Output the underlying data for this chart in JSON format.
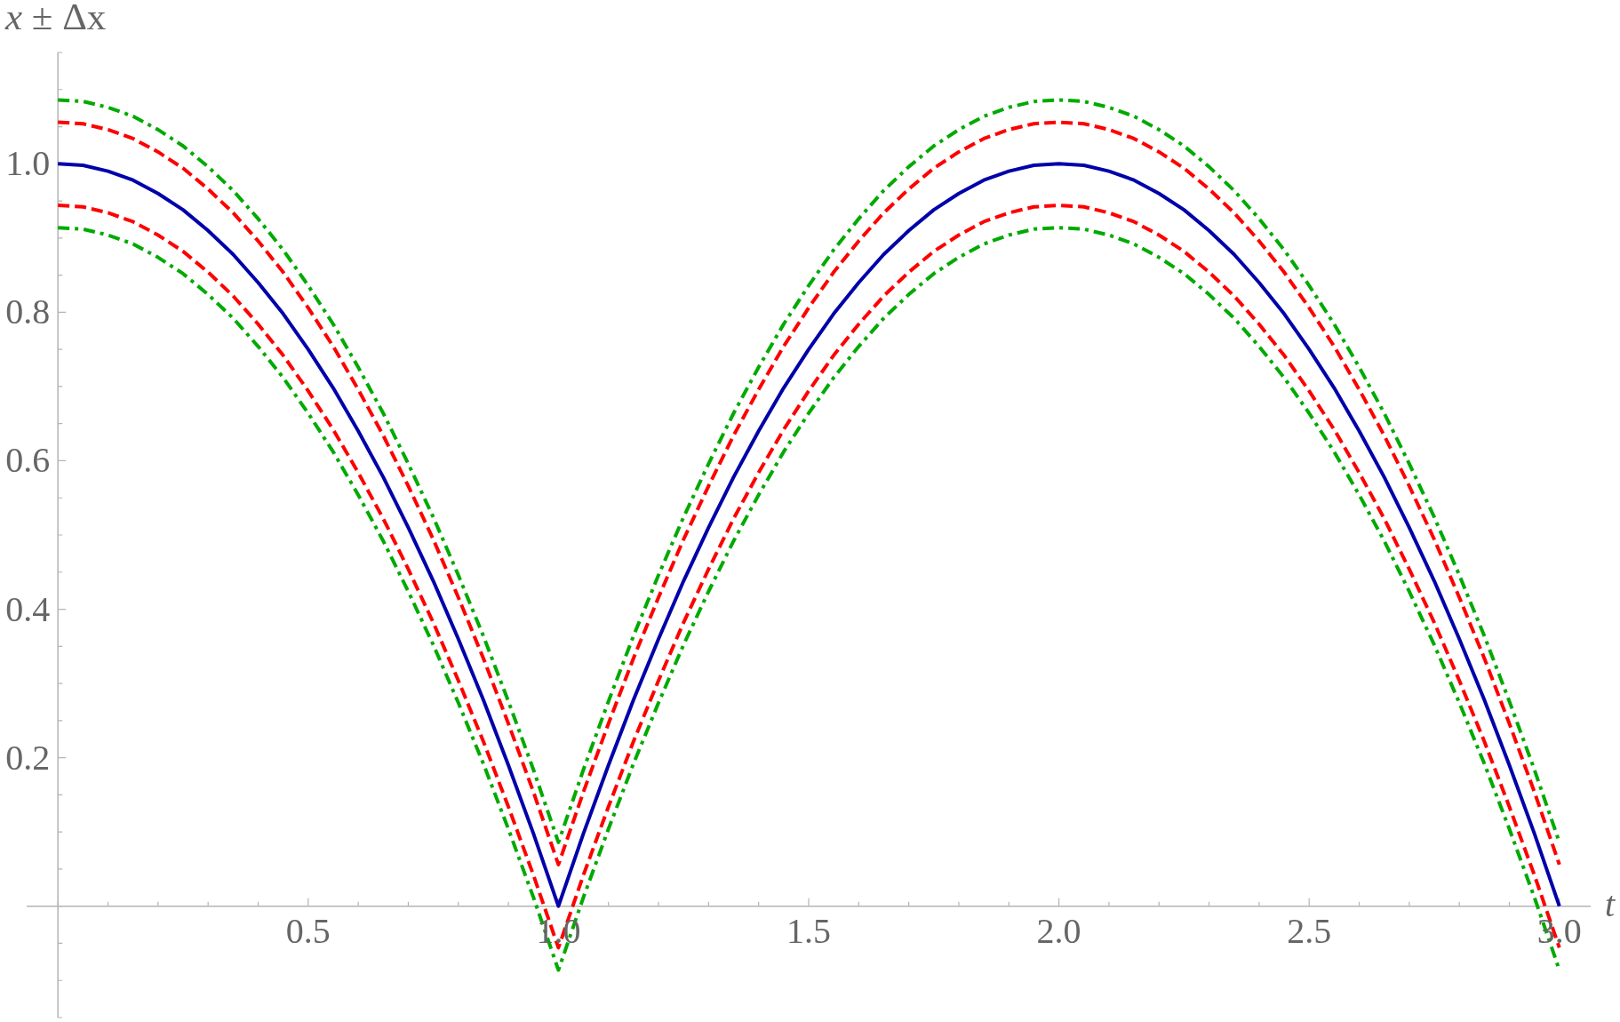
{
  "chart_data": {
    "type": "line",
    "xlabel": "t",
    "ylabel": "x ± Δx",
    "marker": "none",
    "xlim": [
      -0.0625,
      3.0625
    ],
    "xticks": [
      {
        "value": 0,
        "label": null
      },
      {
        "value": 0.1,
        "label": null
      },
      {
        "value": 0.2,
        "label": null
      },
      {
        "value": 0.3,
        "label": null
      },
      {
        "value": 0.4,
        "label": null
      },
      0.5,
      {
        "value": 0.6,
        "label": null
      },
      {
        "value": 0.7,
        "label": null
      },
      {
        "value": 0.8,
        "label": null
      },
      {
        "value": 0.9,
        "label": null
      },
      {
        "value": 1,
        "label": "1.0"
      },
      {
        "value": 1.1,
        "label": null
      },
      {
        "value": 1.2,
        "label": null
      },
      {
        "value": 1.3,
        "label": null
      },
      {
        "value": 1.4,
        "label": null
      },
      1.5,
      {
        "value": 1.6,
        "label": null
      },
      {
        "value": 1.7,
        "label": null
      },
      {
        "value": 1.8,
        "label": null
      },
      {
        "value": 1.9,
        "label": null
      },
      {
        "value": 2,
        "label": "2.0"
      },
      {
        "value": 2.1,
        "label": null
      },
      {
        "value": 2.2,
        "label": null
      },
      {
        "value": 2.3,
        "label": null
      },
      {
        "value": 2.4,
        "label": null
      },
      2.5,
      {
        "value": 2.6,
        "label": null
      },
      {
        "value": 2.7,
        "label": null
      },
      {
        "value": 2.8,
        "label": null
      },
      {
        "value": 2.9,
        "label": null
      },
      {
        "value": 3,
        "label": "3.0"
      }
    ],
    "ylim": [
      -0.15,
      1.15
    ],
    "yticks": [
      {
        "value": -0.15,
        "label": null
      },
      {
        "value": -0.1,
        "label": null
      },
      {
        "value": -0.05,
        "label": null
      },
      {
        "value": 0,
        "label": null
      },
      {
        "value": 0.05,
        "label": null
      },
      {
        "value": 0.1,
        "label": null
      },
      {
        "value": 0.15,
        "label": null
      },
      0.2,
      {
        "value": 0.25,
        "label": null
      },
      {
        "value": 0.3,
        "label": null
      },
      {
        "value": 0.35,
        "label": null
      },
      0.4,
      {
        "value": 0.45,
        "label": null
      },
      {
        "value": 0.5,
        "label": null
      },
      {
        "value": 0.55,
        "label": null
      },
      0.6,
      {
        "value": 0.65,
        "label": null
      },
      {
        "value": 0.7,
        "label": null
      },
      {
        "value": 0.75,
        "label": null
      },
      0.8,
      {
        "value": 0.85,
        "label": null
      },
      {
        "value": 0.9,
        "label": null
      },
      {
        "value": 0.95,
        "label": null
      },
      {
        "value": 1,
        "label": "1.0"
      },
      {
        "value": 1.05,
        "label": null
      },
      {
        "value": 1.1,
        "label": null
      },
      {
        "value": 1.15,
        "label": null
      }
    ],
    "x": [
      0,
      0.05,
      0.1,
      0.15,
      0.2,
      0.25,
      0.3,
      0.35,
      0.4,
      0.45,
      0.5,
      0.55,
      0.6,
      0.65,
      0.7,
      0.75,
      0.8,
      0.85,
      0.9,
      0.95,
      1,
      1.05,
      1.1,
      1.15,
      1.2,
      1.25,
      1.3,
      1.35,
      1.4,
      1.45,
      1.5,
      1.55,
      1.6,
      1.65,
      1.7,
      1.75,
      1.8,
      1.85,
      1.9,
      1.95,
      2,
      2.05,
      2.1,
      2.15,
      2.2,
      2.25,
      2.3,
      2.35,
      2.4,
      2.45,
      2.5,
      2.55,
      2.6,
      2.65,
      2.7,
      2.75,
      2.8,
      2.85,
      2.9,
      2.95,
      3
    ],
    "series": [
      {
        "color": "#0000aa",
        "line_style": "solid",
        "values": [
          1,
          0.998,
          0.99,
          0.978,
          0.96,
          0.938,
          0.91,
          0.878,
          0.84,
          0.798,
          0.75,
          0.698,
          0.64,
          0.578,
          0.51,
          0.438,
          0.36,
          0.278,
          0.19,
          0.098,
          0,
          0.098,
          0.19,
          0.278,
          0.36,
          0.438,
          0.51,
          0.578,
          0.64,
          0.698,
          0.75,
          0.798,
          0.84,
          0.878,
          0.91,
          0.938,
          0.96,
          0.978,
          0.99,
          0.998,
          1,
          0.998,
          0.99,
          0.978,
          0.96,
          0.938,
          0.91,
          0.878,
          0.84,
          0.798,
          0.75,
          0.698,
          0.64,
          0.578,
          0.51,
          0.438,
          0.36,
          0.278,
          0.19,
          0.098,
          0
        ]
      },
      {
        "color": "#ff0000",
        "line_style": "dashed",
        "values": [
          1.056,
          1.054,
          1.046,
          1.034,
          1.016,
          0.994,
          0.966,
          0.934,
          0.896,
          0.854,
          0.806,
          0.754,
          0.696,
          0.634,
          0.566,
          0.494,
          0.416,
          0.334,
          0.246,
          0.154,
          0.056,
          0.154,
          0.246,
          0.334,
          0.416,
          0.494,
          0.566,
          0.634,
          0.696,
          0.754,
          0.806,
          0.854,
          0.896,
          0.934,
          0.966,
          0.994,
          1.016,
          1.034,
          1.046,
          1.054,
          1.056,
          1.054,
          1.046,
          1.034,
          1.016,
          0.994,
          0.966,
          0.934,
          0.896,
          0.854,
          0.806,
          0.754,
          0.696,
          0.634,
          0.566,
          0.494,
          0.416,
          0.334,
          0.246,
          0.154,
          0.056
        ]
      },
      {
        "color": "#ff0000",
        "line_style": "dashed",
        "values": [
          0.944,
          0.942,
          0.934,
          0.922,
          0.904,
          0.882,
          0.854,
          0.822,
          0.784,
          0.742,
          0.694,
          0.642,
          0.584,
          0.522,
          0.454,
          0.382,
          0.304,
          0.222,
          0.134,
          0.042,
          -0.056,
          0.042,
          0.134,
          0.222,
          0.304,
          0.382,
          0.454,
          0.522,
          0.584,
          0.642,
          0.694,
          0.742,
          0.784,
          0.822,
          0.854,
          0.882,
          0.904,
          0.922,
          0.934,
          0.942,
          0.944,
          0.942,
          0.934,
          0.922,
          0.904,
          0.882,
          0.854,
          0.822,
          0.784,
          0.742,
          0.694,
          0.642,
          0.584,
          0.522,
          0.454,
          0.382,
          0.304,
          0.222,
          0.134,
          0.042,
          -0.056
        ]
      },
      {
        "color": "#00aa00",
        "line_style": "dashdot",
        "values": [
          1.086,
          1.084,
          1.076,
          1.064,
          1.046,
          1.024,
          0.996,
          0.964,
          0.926,
          0.884,
          0.836,
          0.784,
          0.726,
          0.664,
          0.596,
          0.524,
          0.446,
          0.364,
          0.276,
          0.184,
          0.086,
          0.184,
          0.276,
          0.364,
          0.446,
          0.524,
          0.596,
          0.664,
          0.726,
          0.784,
          0.836,
          0.884,
          0.926,
          0.964,
          0.996,
          1.024,
          1.046,
          1.064,
          1.076,
          1.084,
          1.086,
          1.084,
          1.076,
          1.064,
          1.046,
          1.024,
          0.996,
          0.964,
          0.926,
          0.884,
          0.836,
          0.784,
          0.726,
          0.664,
          0.596,
          0.524,
          0.446,
          0.364,
          0.276,
          0.184,
          0.086
        ]
      },
      {
        "color": "#00aa00",
        "line_style": "dashdot",
        "values": [
          0.914,
          0.912,
          0.904,
          0.892,
          0.874,
          0.852,
          0.824,
          0.792,
          0.754,
          0.712,
          0.664,
          0.612,
          0.554,
          0.492,
          0.424,
          0.352,
          0.274,
          0.192,
          0.104,
          0.012,
          -0.086,
          0.012,
          0.104,
          0.192,
          0.274,
          0.352,
          0.424,
          0.492,
          0.554,
          0.612,
          0.664,
          0.712,
          0.754,
          0.792,
          0.824,
          0.852,
          0.874,
          0.892,
          0.904,
          0.912,
          0.914,
          0.912,
          0.904,
          0.892,
          0.874,
          0.852,
          0.824,
          0.792,
          0.754,
          0.712,
          0.664,
          0.612,
          0.554,
          0.492,
          0.424,
          0.352,
          0.274,
          0.192,
          0.104,
          0.012,
          -0.086
        ]
      }
    ]
  }
}
